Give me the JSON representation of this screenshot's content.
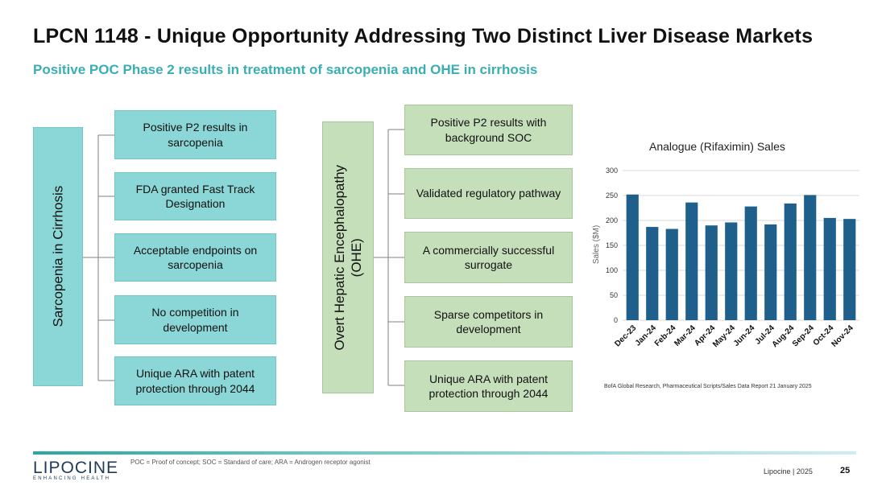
{
  "slide": {
    "title": "LPCN 1148 - Unique Opportunity Addressing Two Distinct Liver Disease Markets",
    "subtitle": "Positive POC Phase 2 results in treatment of sarcopenia and OHE in cirrhosis"
  },
  "left_group": {
    "label": "Sarcopenia in Cirrhosis",
    "items": [
      "Positive P2 results in sarcopenia",
      "FDA granted Fast Track Designation",
      "Acceptable endpoints on sarcopenia",
      "No competition in development",
      "Unique ARA with patent protection through 2044"
    ],
    "color": "#8bd6d6"
  },
  "right_group": {
    "label_line1": "Overt Hepatic Encephalopathy",
    "label_line2": "(OHE)",
    "items": [
      "Positive P2 results with background SOC",
      "Validated regulatory pathway",
      "A commercially successful surrogate",
      "Sparse competitors in development",
      "Unique ARA with patent protection through 2044"
    ],
    "color": "#c4dfb9"
  },
  "chart_data": {
    "type": "bar",
    "title": "Analogue (Rifaximin) Sales",
    "xlabel": "",
    "ylabel": "Sales ($M)",
    "categories": [
      "Dec-23",
      "Jan-24",
      "Feb-24",
      "Mar-24",
      "Apr-24",
      "May-24",
      "Jun-24",
      "Jul-24",
      "Aug-24",
      "Sep-24",
      "Oct-24",
      "Nov-24"
    ],
    "values": [
      252,
      187,
      183,
      236,
      190,
      196,
      228,
      192,
      234,
      251,
      205,
      203
    ],
    "ylim": [
      0,
      300
    ],
    "yticks": [
      0,
      50,
      100,
      150,
      200,
      250,
      300
    ],
    "grid": true,
    "bar_color": "#1f5f8b",
    "source": "BofA Global Research, Pharmaceutical Scripts/Sales Data Report 21 January 2025"
  },
  "footer": {
    "logo_text": "LIPOCINE",
    "logo_tagline": "ENHANCING HEALTH",
    "footnote": "POC = Proof of concept; SOC = Standard of care; ARA = Androgen receptor agonist",
    "company": "Lipocine | 2025",
    "page_number": "25"
  }
}
